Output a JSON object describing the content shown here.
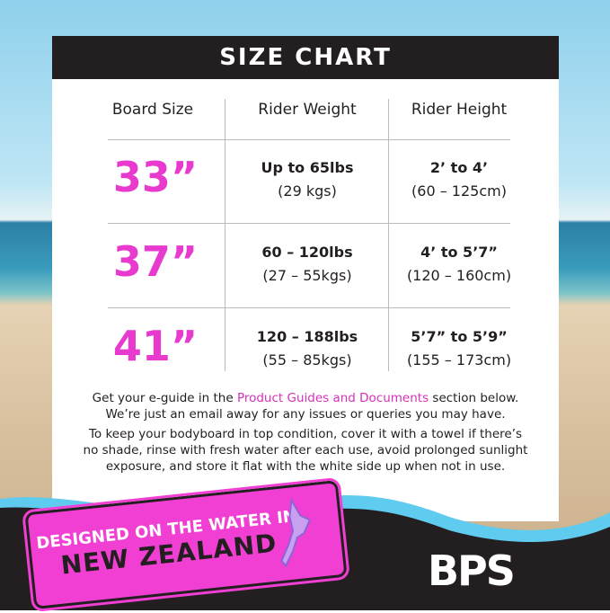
{
  "header": {
    "title": "SIZE CHART"
  },
  "table": {
    "columns": [
      "Board Size",
      "Rider Weight",
      "Rider Height"
    ],
    "rows": [
      {
        "size": "33”",
        "weight": "Up to 65lbs",
        "weight_metric": "(29 kgs)",
        "height": "2’ to 4’",
        "height_metric": "(60 – 125cm)"
      },
      {
        "size": "37”",
        "weight": "60 – 120lbs",
        "weight_metric": "(27 – 55kgs)",
        "height": "4’ to 5’7”",
        "height_metric": "(120 – 160cm)"
      },
      {
        "size": "41”",
        "weight": "120 – 188lbs",
        "weight_metric": "(55 – 85kgs)",
        "height": "5’7” to 5’9”",
        "height_metric": "(155 – 173cm)"
      }
    ]
  },
  "notes": {
    "p1_before": "Get your e-guide in the ",
    "p1_link": "Product Guides and Documents",
    "p1_after": " section below.",
    "p1_line2": "We’re just an email away for any issues or queries you may have.",
    "p2_line1": "To keep your bodyboard in top condition, cover it with a towel if there’s",
    "p2_line2": "no shade, rinse with fresh water after each use, avoid prolonged sunlight",
    "p2_line3": "exposure, and store it flat with the white side up when not in use."
  },
  "stamp": {
    "line1": "DESIGNED ON THE WATER IN",
    "line2": "NEW ZEALAND"
  },
  "logo": {
    "text": "BPS"
  },
  "colors": {
    "accent": "#e93ad0",
    "dark": "#231f20",
    "wave": "#5fcbee"
  }
}
